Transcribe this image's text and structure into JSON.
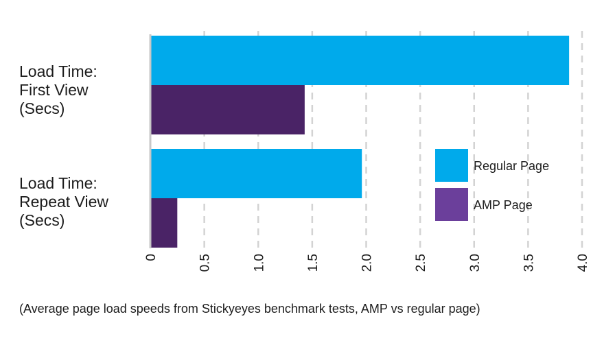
{
  "chart_data": {
    "type": "bar",
    "orientation": "horizontal",
    "categories": [
      [
        "Load Time:",
        "First View",
        "(Secs)"
      ],
      [
        "Load Time:",
        "Repeat View",
        "(Secs)"
      ]
    ],
    "series": [
      {
        "name": "Regular Page",
        "color": "#00aaeb",
        "values": [
          3.88,
          1.96
        ]
      },
      {
        "name": "AMP Page",
        "color": "#4a2366",
        "values": [
          1.43,
          0.25
        ]
      }
    ],
    "legend_swatch_colors": [
      "#00aaeb",
      "#6b3f9b"
    ],
    "xlim": [
      0,
      4.0
    ],
    "x_ticks": [
      "0",
      "0.5",
      "1.0",
      "1.5",
      "2.0",
      "2.5",
      "3.0",
      "3.5",
      "4.0"
    ],
    "grid": "vertical-dashed",
    "legend_position": "right",
    "caption": "(Average page load speeds from Stickyeyes benchmark tests, AMP vs regular page)"
  }
}
